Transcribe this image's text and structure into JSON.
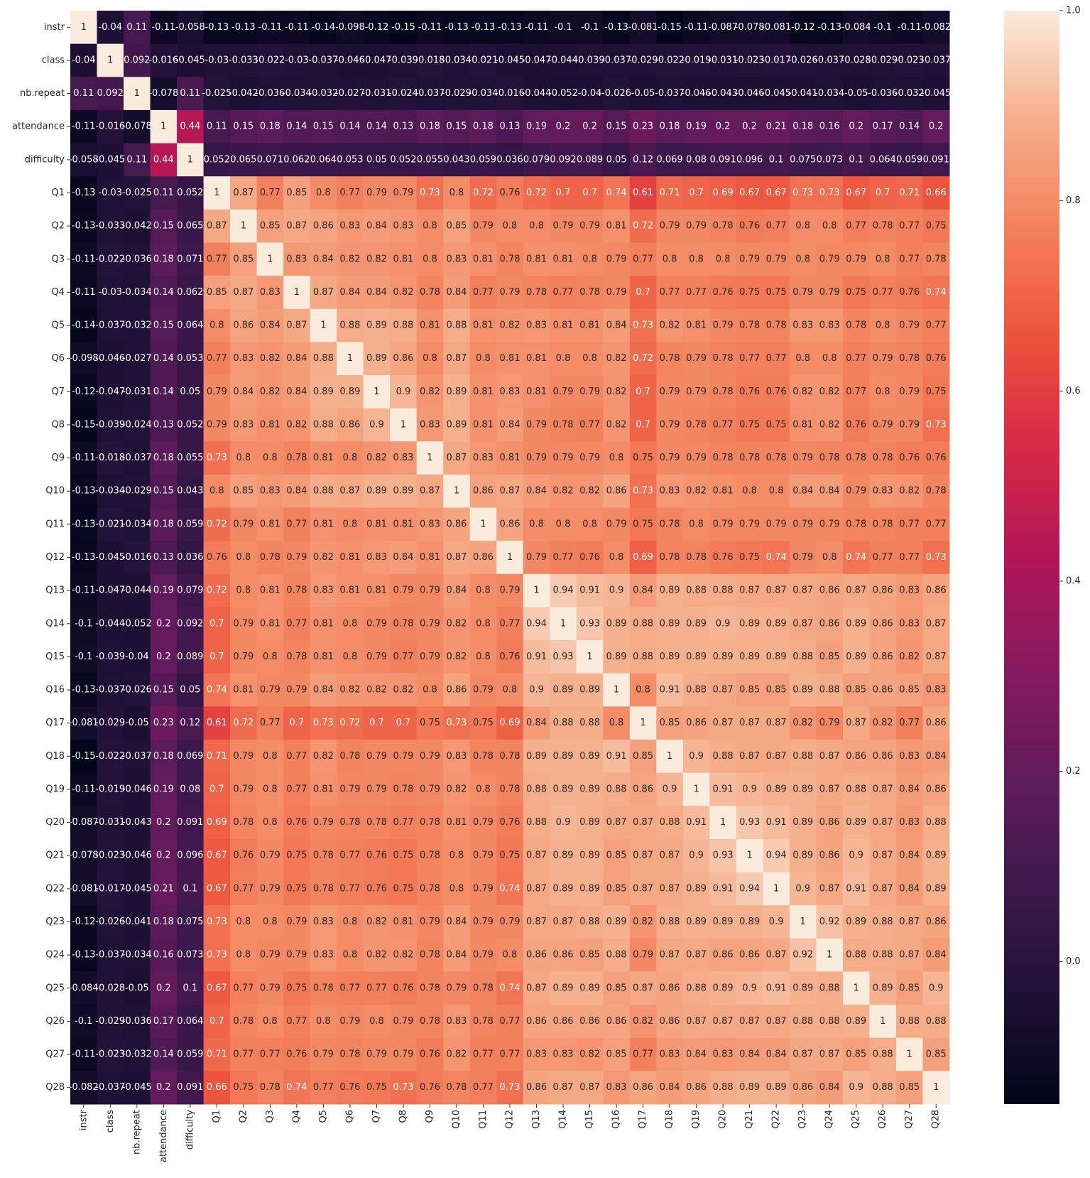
{
  "chart_data": {
    "type": "heatmap",
    "title": "",
    "xlabel": "",
    "ylabel": "",
    "labels": [
      "instr",
      "class",
      "nb.repeat",
      "attendance",
      "difficulty",
      "Q1",
      "Q2",
      "Q3",
      "Q4",
      "Q5",
      "Q6",
      "Q7",
      "Q8",
      "Q9",
      "Q10",
      "Q11",
      "Q12",
      "Q13",
      "Q14",
      "Q15",
      "Q16",
      "Q17",
      "Q18",
      "Q19",
      "Q20",
      "Q21",
      "Q22",
      "Q23",
      "Q24",
      "Q25",
      "Q26",
      "Q27",
      "Q28"
    ],
    "matrix": [
      [
        1,
        -0.04,
        0.11,
        -0.11,
        -0.058,
        -0.13,
        -0.13,
        -0.11,
        -0.11,
        -0.14,
        -0.098,
        -0.12,
        -0.15,
        -0.11,
        -0.13,
        -0.13,
        -0.13,
        -0.11,
        -0.1,
        -0.1,
        -0.13,
        -0.081,
        -0.15,
        -0.11,
        -0.087,
        -0.078,
        -0.081,
        -0.12,
        -0.13,
        -0.084,
        -0.1,
        -0.11,
        -0.082
      ],
      [
        -0.04,
        1,
        0.092,
        -0.016,
        -0.045,
        -0.03,
        -0.033,
        -0.022,
        -0.03,
        -0.037,
        -0.046,
        -0.047,
        -0.039,
        -0.018,
        -0.034,
        -0.021,
        -0.045,
        -0.047,
        -0.044,
        -0.039,
        -0.037,
        -0.029,
        -0.022,
        -0.019,
        -0.031,
        -0.023,
        -0.017,
        -0.026,
        -0.037,
        -0.028,
        -0.029,
        -0.023,
        -0.037
      ],
      [
        0.11,
        0.092,
        1,
        -0.078,
        0.11,
        -0.025,
        -0.042,
        -0.036,
        -0.034,
        -0.032,
        -0.027,
        -0.031,
        -0.024,
        -0.037,
        -0.029,
        -0.034,
        -0.016,
        -0.044,
        -0.052,
        -0.04,
        -0.026,
        -0.05,
        -0.037,
        -0.046,
        -0.043,
        -0.046,
        -0.045,
        -0.041,
        -0.034,
        -0.05,
        -0.036,
        -0.032,
        -0.045
      ],
      [
        -0.11,
        -0.016,
        -0.078,
        1,
        0.44,
        0.11,
        0.15,
        0.18,
        0.14,
        0.15,
        0.14,
        0.14,
        0.13,
        0.18,
        0.15,
        0.18,
        0.13,
        0.19,
        0.2,
        0.2,
        0.15,
        0.23,
        0.18,
        0.19,
        0.2,
        0.2,
        0.21,
        0.18,
        0.16,
        0.2,
        0.17,
        0.14,
        0.2
      ],
      [
        -0.058,
        -0.045,
        0.11,
        0.44,
        1,
        0.052,
        0.065,
        0.071,
        0.062,
        0.064,
        0.053,
        0.05,
        0.052,
        0.055,
        0.043,
        0.059,
        0.036,
        0.079,
        0.092,
        0.089,
        0.05,
        0.12,
        0.069,
        0.08,
        0.091,
        0.096,
        0.1,
        0.075,
        0.073,
        0.1,
        0.064,
        0.059,
        0.091
      ],
      [
        -0.13,
        -0.03,
        -0.025,
        0.11,
        0.052,
        1,
        0.87,
        0.77,
        0.85,
        0.8,
        0.77,
        0.79,
        0.79,
        0.73,
        0.8,
        0.72,
        0.76,
        0.72,
        0.7,
        0.7,
        0.74,
        0.61,
        0.71,
        0.7,
        0.69,
        0.67,
        0.67,
        0.73,
        0.73,
        0.67,
        0.7,
        0.71,
        0.66
      ],
      [
        -0.13,
        -0.033,
        -0.042,
        0.15,
        0.065,
        0.87,
        1,
        0.85,
        0.87,
        0.86,
        0.83,
        0.84,
        0.83,
        0.8,
        0.85,
        0.79,
        0.8,
        0.8,
        0.79,
        0.79,
        0.81,
        0.72,
        0.79,
        0.79,
        0.78,
        0.76,
        0.77,
        0.8,
        0.8,
        0.77,
        0.78,
        0.77,
        0.75
      ],
      [
        -0.11,
        -0.022,
        -0.036,
        0.18,
        0.071,
        0.77,
        0.85,
        1,
        0.83,
        0.84,
        0.82,
        0.82,
        0.81,
        0.8,
        0.83,
        0.81,
        0.78,
        0.81,
        0.81,
        0.8,
        0.79,
        0.77,
        0.8,
        0.8,
        0.8,
        0.79,
        0.79,
        0.8,
        0.79,
        0.79,
        0.8,
        0.77,
        0.78
      ],
      [
        -0.11,
        -0.03,
        -0.034,
        0.14,
        0.062,
        0.85,
        0.87,
        0.83,
        1,
        0.87,
        0.84,
        0.84,
        0.82,
        0.78,
        0.84,
        0.77,
        0.79,
        0.78,
        0.77,
        0.78,
        0.79,
        0.7,
        0.77,
        0.77,
        0.76,
        0.75,
        0.75,
        0.79,
        0.79,
        0.75,
        0.77,
        0.76,
        0.74
      ],
      [
        -0.14,
        -0.037,
        -0.032,
        0.15,
        0.064,
        0.8,
        0.86,
        0.84,
        0.87,
        1,
        0.88,
        0.89,
        0.88,
        0.81,
        0.88,
        0.81,
        0.82,
        0.83,
        0.81,
        0.81,
        0.84,
        0.73,
        0.82,
        0.81,
        0.79,
        0.78,
        0.78,
        0.83,
        0.83,
        0.78,
        0.8,
        0.79,
        0.77
      ],
      [
        -0.098,
        -0.046,
        -0.027,
        0.14,
        0.053,
        0.77,
        0.83,
        0.82,
        0.84,
        0.88,
        1,
        0.89,
        0.86,
        0.8,
        0.87,
        0.8,
        0.81,
        0.81,
        0.8,
        0.8,
        0.82,
        0.72,
        0.78,
        0.79,
        0.78,
        0.77,
        0.77,
        0.8,
        0.8,
        0.77,
        0.79,
        0.78,
        0.76
      ],
      [
        -0.12,
        -0.047,
        -0.031,
        0.14,
        0.05,
        0.79,
        0.84,
        0.82,
        0.84,
        0.89,
        0.89,
        1,
        0.9,
        0.82,
        0.89,
        0.81,
        0.83,
        0.81,
        0.79,
        0.79,
        0.82,
        0.7,
        0.79,
        0.79,
        0.78,
        0.76,
        0.76,
        0.82,
        0.82,
        0.77,
        0.8,
        0.79,
        0.75
      ],
      [
        -0.15,
        -0.039,
        -0.024,
        0.13,
        0.052,
        0.79,
        0.83,
        0.81,
        0.82,
        0.88,
        0.86,
        0.9,
        1,
        0.83,
        0.89,
        0.81,
        0.84,
        0.79,
        0.78,
        0.77,
        0.82,
        0.7,
        0.79,
        0.78,
        0.77,
        0.75,
        0.75,
        0.81,
        0.82,
        0.76,
        0.79,
        0.79,
        0.73
      ],
      [
        -0.11,
        -0.018,
        -0.037,
        0.18,
        0.055,
        0.73,
        0.8,
        0.8,
        0.78,
        0.81,
        0.8,
        0.82,
        0.83,
        1,
        0.87,
        0.83,
        0.81,
        0.79,
        0.79,
        0.79,
        0.8,
        0.75,
        0.79,
        0.79,
        0.78,
        0.78,
        0.78,
        0.79,
        0.78,
        0.78,
        0.78,
        0.76,
        0.76
      ],
      [
        -0.13,
        -0.034,
        -0.029,
        0.15,
        0.043,
        0.8,
        0.85,
        0.83,
        0.84,
        0.88,
        0.87,
        0.89,
        0.89,
        0.87,
        1,
        0.86,
        0.87,
        0.84,
        0.82,
        0.82,
        0.86,
        0.73,
        0.83,
        0.82,
        0.81,
        0.8,
        0.8,
        0.84,
        0.84,
        0.79,
        0.83,
        0.82,
        0.78
      ],
      [
        -0.13,
        -0.021,
        -0.034,
        0.18,
        0.059,
        0.72,
        0.79,
        0.81,
        0.77,
        0.81,
        0.8,
        0.81,
        0.81,
        0.83,
        0.86,
        1,
        0.86,
        0.8,
        0.8,
        0.8,
        0.79,
        0.75,
        0.78,
        0.8,
        0.79,
        0.79,
        0.79,
        0.79,
        0.79,
        0.78,
        0.78,
        0.77,
        0.77
      ],
      [
        -0.13,
        -0.045,
        -0.016,
        0.13,
        0.036,
        0.76,
        0.8,
        0.78,
        0.79,
        0.82,
        0.81,
        0.83,
        0.84,
        0.81,
        0.87,
        0.86,
        1,
        0.79,
        0.77,
        0.76,
        0.8,
        0.69,
        0.78,
        0.78,
        0.76,
        0.75,
        0.74,
        0.79,
        0.8,
        0.74,
        0.77,
        0.77,
        0.73
      ],
      [
        -0.11,
        -0.047,
        -0.044,
        0.19,
        0.079,
        0.72,
        0.8,
        0.81,
        0.78,
        0.83,
        0.81,
        0.81,
        0.79,
        0.79,
        0.84,
        0.8,
        0.79,
        1,
        0.94,
        0.91,
        0.9,
        0.84,
        0.89,
        0.88,
        0.88,
        0.87,
        0.87,
        0.87,
        0.86,
        0.87,
        0.86,
        0.83,
        0.86
      ],
      [
        -0.1,
        -0.044,
        -0.052,
        0.2,
        0.092,
        0.7,
        0.79,
        0.81,
        0.77,
        0.81,
        0.8,
        0.79,
        0.78,
        0.79,
        0.82,
        0.8,
        0.77,
        0.94,
        1,
        0.93,
        0.89,
        0.88,
        0.89,
        0.89,
        0.9,
        0.89,
        0.89,
        0.87,
        0.86,
        0.89,
        0.86,
        0.83,
        0.87
      ],
      [
        -0.1,
        -0.039,
        -0.04,
        0.2,
        0.089,
        0.7,
        0.79,
        0.8,
        0.78,
        0.81,
        0.8,
        0.79,
        0.77,
        0.79,
        0.82,
        0.8,
        0.76,
        0.91,
        0.93,
        1,
        0.89,
        0.88,
        0.89,
        0.89,
        0.89,
        0.89,
        0.89,
        0.88,
        0.85,
        0.89,
        0.86,
        0.82,
        0.87
      ],
      [
        -0.13,
        -0.037,
        -0.026,
        0.15,
        0.05,
        0.74,
        0.81,
        0.79,
        0.79,
        0.84,
        0.82,
        0.82,
        0.82,
        0.8,
        0.86,
        0.79,
        0.8,
        0.9,
        0.89,
        0.89,
        1,
        0.8,
        0.91,
        0.88,
        0.87,
        0.85,
        0.85,
        0.89,
        0.88,
        0.85,
        0.86,
        0.85,
        0.83
      ],
      [
        -0.081,
        -0.029,
        -0.05,
        0.23,
        0.12,
        0.61,
        0.72,
        0.77,
        0.7,
        0.73,
        0.72,
        0.7,
        0.7,
        0.75,
        0.73,
        0.75,
        0.69,
        0.84,
        0.88,
        0.88,
        0.8,
        1,
        0.85,
        0.86,
        0.87,
        0.87,
        0.87,
        0.82,
        0.79,
        0.87,
        0.82,
        0.77,
        0.86
      ],
      [
        -0.15,
        -0.022,
        -0.037,
        0.18,
        0.069,
        0.71,
        0.79,
        0.8,
        0.77,
        0.82,
        0.78,
        0.79,
        0.79,
        0.79,
        0.83,
        0.78,
        0.78,
        0.89,
        0.89,
        0.89,
        0.91,
        0.85,
        1,
        0.9,
        0.88,
        0.87,
        0.87,
        0.88,
        0.87,
        0.86,
        0.86,
        0.83,
        0.84
      ],
      [
        -0.11,
        -0.019,
        -0.046,
        0.19,
        0.08,
        0.7,
        0.79,
        0.8,
        0.77,
        0.81,
        0.79,
        0.79,
        0.78,
        0.79,
        0.82,
        0.8,
        0.78,
        0.88,
        0.89,
        0.89,
        0.88,
        0.86,
        0.9,
        1,
        0.91,
        0.9,
        0.89,
        0.89,
        0.87,
        0.88,
        0.87,
        0.84,
        0.86
      ],
      [
        -0.087,
        -0.031,
        -0.043,
        0.2,
        0.091,
        0.69,
        0.78,
        0.8,
        0.76,
        0.79,
        0.78,
        0.78,
        0.77,
        0.78,
        0.81,
        0.79,
        0.76,
        0.88,
        0.9,
        0.89,
        0.87,
        0.87,
        0.88,
        0.91,
        1,
        0.93,
        0.91,
        0.89,
        0.86,
        0.89,
        0.87,
        0.83,
        0.88
      ],
      [
        -0.078,
        -0.023,
        -0.046,
        0.2,
        0.096,
        0.67,
        0.76,
        0.79,
        0.75,
        0.78,
        0.77,
        0.76,
        0.75,
        0.78,
        0.8,
        0.79,
        0.75,
        0.87,
        0.89,
        0.89,
        0.85,
        0.87,
        0.87,
        0.9,
        0.93,
        1,
        0.94,
        0.89,
        0.86,
        0.9,
        0.87,
        0.84,
        0.89
      ],
      [
        -0.081,
        -0.017,
        -0.045,
        0.21,
        0.1,
        0.67,
        0.77,
        0.79,
        0.75,
        0.78,
        0.77,
        0.76,
        0.75,
        0.78,
        0.8,
        0.79,
        0.74,
        0.87,
        0.89,
        0.89,
        0.85,
        0.87,
        0.87,
        0.89,
        0.91,
        0.94,
        1,
        0.9,
        0.87,
        0.91,
        0.87,
        0.84,
        0.89
      ],
      [
        -0.12,
        -0.026,
        -0.041,
        0.18,
        0.075,
        0.73,
        0.8,
        0.8,
        0.79,
        0.83,
        0.8,
        0.82,
        0.81,
        0.79,
        0.84,
        0.79,
        0.79,
        0.87,
        0.87,
        0.88,
        0.89,
        0.82,
        0.88,
        0.89,
        0.89,
        0.89,
        0.9,
        1,
        0.92,
        0.89,
        0.88,
        0.87,
        0.86
      ],
      [
        -0.13,
        -0.037,
        -0.034,
        0.16,
        0.073,
        0.73,
        0.8,
        0.79,
        0.79,
        0.83,
        0.8,
        0.82,
        0.82,
        0.78,
        0.84,
        0.79,
        0.8,
        0.86,
        0.86,
        0.85,
        0.88,
        0.79,
        0.87,
        0.87,
        0.86,
        0.86,
        0.87,
        0.92,
        1,
        0.88,
        0.88,
        0.87,
        0.84
      ],
      [
        -0.084,
        -0.028,
        -0.05,
        0.2,
        0.1,
        0.67,
        0.77,
        0.79,
        0.75,
        0.78,
        0.77,
        0.77,
        0.76,
        0.78,
        0.79,
        0.78,
        0.74,
        0.87,
        0.89,
        0.89,
        0.85,
        0.87,
        0.86,
        0.88,
        0.89,
        0.9,
        0.91,
        0.89,
        0.88,
        1,
        0.89,
        0.85,
        0.9
      ],
      [
        -0.1,
        -0.029,
        -0.036,
        0.17,
        0.064,
        0.7,
        0.78,
        0.8,
        0.77,
        0.8,
        0.79,
        0.8,
        0.79,
        0.78,
        0.83,
        0.78,
        0.77,
        0.86,
        0.86,
        0.86,
        0.86,
        0.82,
        0.86,
        0.87,
        0.87,
        0.87,
        0.87,
        0.88,
        0.88,
        0.89,
        1,
        0.88,
        0.88
      ],
      [
        -0.11,
        -0.023,
        -0.032,
        0.14,
        0.059,
        0.71,
        0.77,
        0.77,
        0.76,
        0.79,
        0.78,
        0.79,
        0.79,
        0.76,
        0.82,
        0.77,
        0.77,
        0.83,
        0.83,
        0.82,
        0.85,
        0.77,
        0.83,
        0.84,
        0.83,
        0.84,
        0.84,
        0.87,
        0.87,
        0.85,
        0.88,
        1,
        0.85
      ],
      [
        -0.082,
        -0.037,
        -0.045,
        0.2,
        0.091,
        0.66,
        0.75,
        0.78,
        0.74,
        0.77,
        0.76,
        0.75,
        0.73,
        0.76,
        0.78,
        0.77,
        0.73,
        0.86,
        0.87,
        0.87,
        0.83,
        0.86,
        0.84,
        0.86,
        0.88,
        0.89,
        0.89,
        0.86,
        0.84,
        0.9,
        0.88,
        0.85,
        1
      ]
    ],
    "colorbar": {
      "min": -0.15,
      "max": 1.0,
      "ticks": [
        0.0,
        0.2,
        0.4,
        0.6,
        0.8,
        1.0
      ],
      "tick_labels": [
        "0.0",
        "0.2",
        "0.4",
        "0.6",
        "0.8",
        "1.0"
      ],
      "colormap": "rocket"
    },
    "annotations": true
  }
}
